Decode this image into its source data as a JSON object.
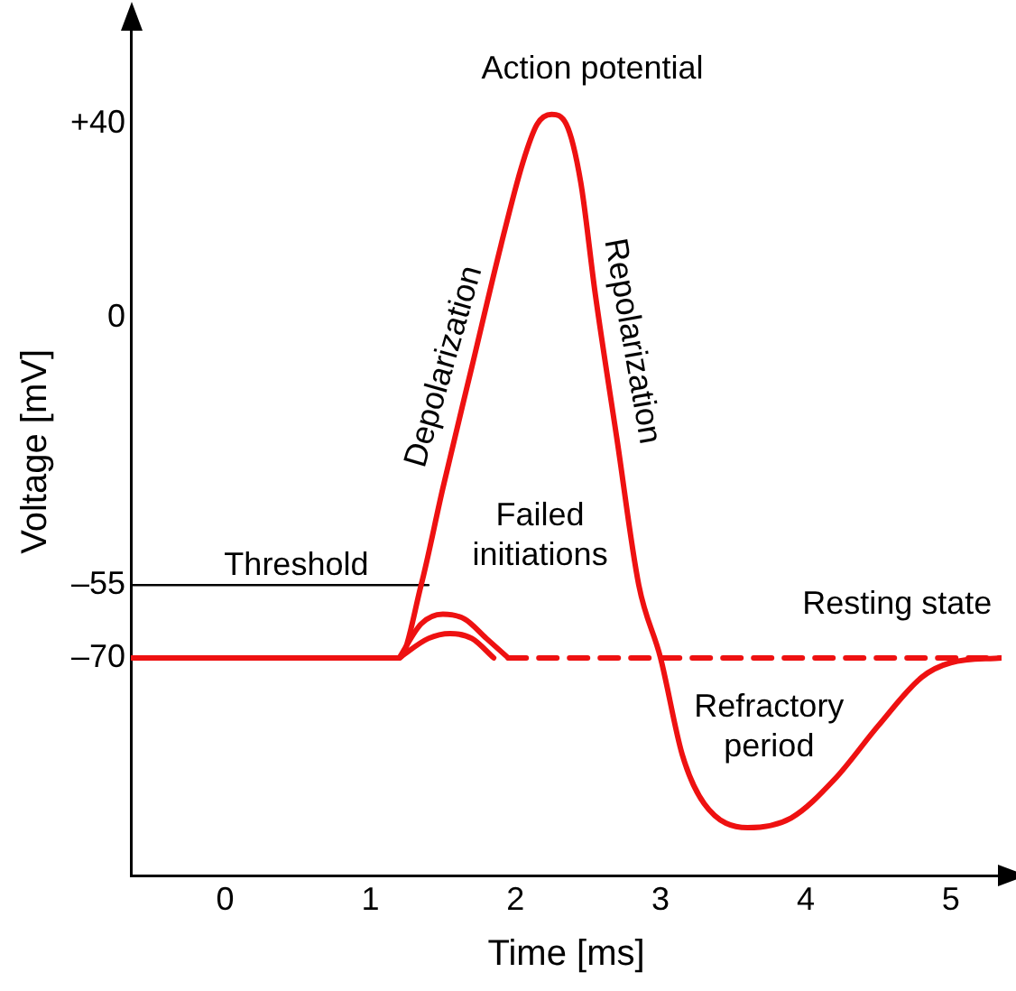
{
  "chart_data": {
    "type": "line",
    "xlabel": "Time [ms]",
    "ylabel": "Voltage [mV]",
    "xlim": [
      -0.65,
      5.35
    ],
    "ylim": [
      -115,
      60
    ],
    "xticks": [
      0,
      1,
      2,
      3,
      4,
      5
    ],
    "yticks": [
      {
        "value": 40,
        "label": "+40"
      },
      0,
      {
        "value": -55,
        "label": "–55"
      },
      {
        "value": -70,
        "label": "–70"
      }
    ],
    "grid": false,
    "legend": false,
    "marker": "none",
    "series": [
      {
        "color": "#ee1111",
        "line_style": "solid",
        "x": [
          -0.65,
          1.2,
          1.35,
          1.5,
          1.7,
          1.9,
          2.05,
          2.15,
          2.25,
          2.35,
          2.45,
          2.55,
          2.7,
          2.85,
          3.0,
          3.15,
          3.3,
          3.6,
          3.9,
          4.2,
          4.5,
          4.8,
          5.0,
          5.35
        ],
        "values": [
          -70,
          -70,
          -55,
          -35,
          -10,
          15,
          32,
          40,
          42,
          40,
          28,
          5,
          -25,
          -55,
          -70,
          -90,
          -100,
          -105,
          -103,
          -95,
          -84,
          -74,
          -71,
          -70
        ]
      },
      {
        "color": "#ee1111",
        "line_style": "solid",
        "x": [
          1.2,
          1.35,
          1.5,
          1.65,
          1.8,
          1.95
        ],
        "values": [
          -70,
          -63,
          -61,
          -62,
          -66,
          -70
        ]
      },
      {
        "color": "#ee1111",
        "line_style": "solid",
        "x": [
          1.2,
          1.4,
          1.55,
          1.7,
          1.85
        ],
        "values": [
          -70,
          -66,
          -65,
          -66,
          -70
        ]
      },
      {
        "color": "#ee1111",
        "line_style": "dashed",
        "x": [
          1.95,
          5.35
        ],
        "values": [
          -70,
          -70
        ]
      },
      {
        "color": "#000000",
        "line_style": "solid",
        "x": [
          -0.65,
          1.4
        ],
        "values": [
          -55,
          -55
        ]
      }
    ],
    "annotations": [
      "Action potential",
      "Depolarization",
      "Repolarization",
      "Failed initiations",
      "Threshold",
      "Resting state",
      "Refractory period"
    ]
  }
}
